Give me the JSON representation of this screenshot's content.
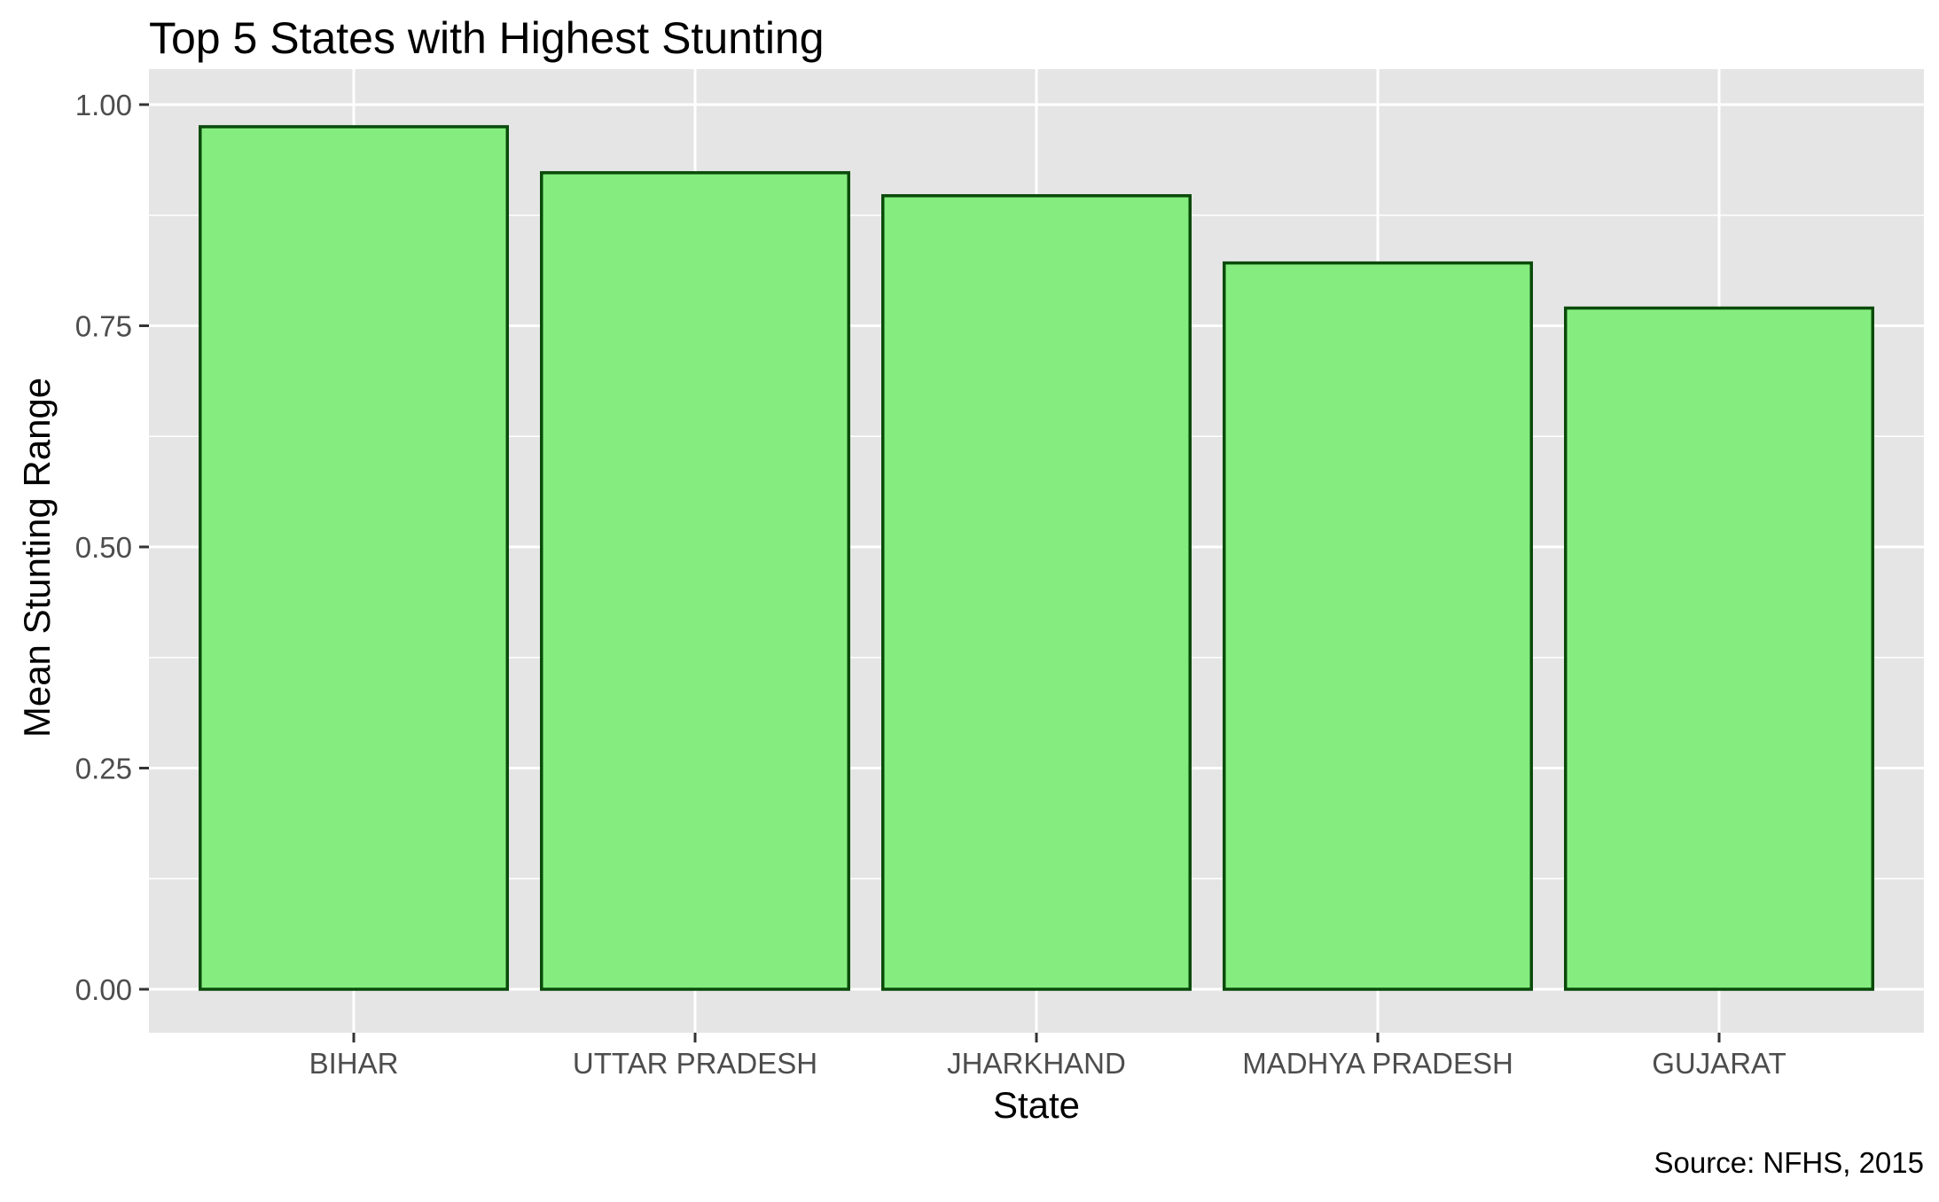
{
  "chart_data": {
    "type": "bar",
    "title": "Top 5 States with Highest Stunting",
    "xlabel": "State",
    "ylabel": "Mean Stunting Range",
    "caption": "Source: NFHS, 2015",
    "categories": [
      "BIHAR",
      "UTTAR PRADESH",
      "JHARKHAND",
      "MADHYA PRADESH",
      "GUJARAT"
    ],
    "values": [
      0.975,
      0.923,
      0.897,
      0.821,
      0.77
    ],
    "ylim": [
      0,
      1.0
    ],
    "yticks": [
      "0.00",
      "0.25",
      "0.50",
      "0.75",
      "1.00"
    ],
    "grid": true,
    "legend": "none",
    "colors": {
      "panel_background": "#e5e5e5",
      "grid": "#ffffff",
      "bar_fill": "#85ed80",
      "bar_outline": "#0a4a0a",
      "tick_text": "#4d4d4d",
      "tick_mark": "#333333"
    }
  }
}
